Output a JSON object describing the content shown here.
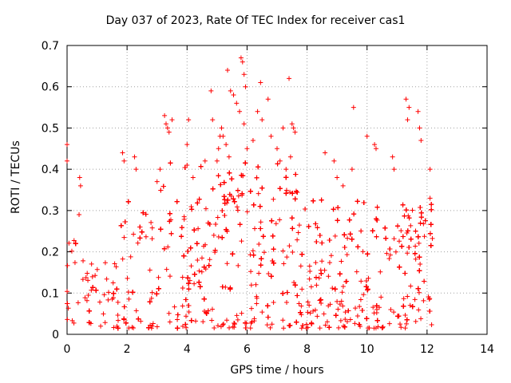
{
  "chart_data": {
    "type": "scatter",
    "title": "Day 037 of 2023, Rate Of TEC Index for receiver cas1",
    "xlabel": "GPS time / hours",
    "ylabel": "ROTI / TECUs",
    "xlim": [
      0,
      14
    ],
    "ylim": [
      0,
      0.7
    ],
    "xticks": [
      0,
      2,
      4,
      6,
      8,
      10,
      12,
      14
    ],
    "yticks": [
      0,
      0.1,
      0.2,
      0.3,
      0.4,
      0.5,
      0.6,
      0.7
    ],
    "xtick_labels": [
      "0",
      "2",
      "4",
      "6",
      "8",
      "10",
      "12",
      "14"
    ],
    "ytick_labels": [
      "0",
      "0.1",
      "0.2",
      "0.3",
      "0.4",
      "0.5",
      "0.6",
      "0.7"
    ],
    "grid": true,
    "marker": "+",
    "color": "#ff0000",
    "series": [
      {
        "points": [
          [
            0.0,
            0.46
          ],
          [
            0.0,
            0.42
          ],
          [
            0.45,
            0.36
          ],
          [
            0.42,
            0.38
          ],
          [
            0.4,
            0.29
          ],
          [
            1.85,
            0.44
          ],
          [
            1.9,
            0.42
          ],
          [
            2.25,
            0.43
          ],
          [
            2.3,
            0.4
          ],
          [
            3.25,
            0.53
          ],
          [
            3.3,
            0.51
          ],
          [
            3.35,
            0.5
          ],
          [
            3.4,
            0.49
          ],
          [
            3.5,
            0.52
          ],
          [
            3.1,
            0.4
          ],
          [
            3.0,
            0.37
          ],
          [
            4.05,
            0.52
          ],
          [
            4.0,
            0.46
          ],
          [
            4.0,
            0.41
          ],
          [
            4.2,
            0.38
          ],
          [
            4.8,
            0.59
          ],
          [
            4.85,
            0.52
          ],
          [
            4.6,
            0.42
          ],
          [
            5.0,
            0.42
          ],
          [
            5.05,
            0.45
          ],
          [
            5.1,
            0.48
          ],
          [
            5.15,
            0.5
          ],
          [
            5.35,
            0.64
          ],
          [
            5.45,
            0.59
          ],
          [
            5.55,
            0.58
          ],
          [
            5.65,
            0.56
          ],
          [
            5.75,
            0.54
          ],
          [
            5.8,
            0.67
          ],
          [
            5.85,
            0.66
          ],
          [
            5.9,
            0.63
          ],
          [
            5.95,
            0.6
          ],
          [
            5.2,
            0.48
          ],
          [
            5.3,
            0.46
          ],
          [
            5.4,
            0.43
          ],
          [
            5.9,
            0.51
          ],
          [
            6.0,
            0.45
          ],
          [
            6.2,
            0.47
          ],
          [
            6.35,
            0.54
          ],
          [
            6.45,
            0.61
          ],
          [
            6.5,
            0.52
          ],
          [
            6.7,
            0.57
          ],
          [
            6.8,
            0.48
          ],
          [
            7.0,
            0.45
          ],
          [
            7.2,
            0.5
          ],
          [
            7.4,
            0.62
          ],
          [
            7.5,
            0.51
          ],
          [
            7.55,
            0.5
          ],
          [
            7.6,
            0.49
          ],
          [
            7.1,
            0.42
          ],
          [
            7.3,
            0.4
          ],
          [
            7.45,
            0.43
          ],
          [
            8.6,
            0.44
          ],
          [
            8.9,
            0.42
          ],
          [
            9.0,
            0.38
          ],
          [
            9.2,
            0.36
          ],
          [
            9.5,
            0.4
          ],
          [
            9.55,
            0.55
          ],
          [
            10.0,
            0.48
          ],
          [
            10.3,
            0.45
          ],
          [
            10.25,
            0.46
          ],
          [
            10.85,
            0.43
          ],
          [
            10.9,
            0.4
          ],
          [
            11.3,
            0.57
          ],
          [
            11.4,
            0.55
          ],
          [
            11.35,
            0.52
          ],
          [
            11.7,
            0.54
          ],
          [
            11.75,
            0.5
          ],
          [
            11.8,
            0.47
          ],
          [
            12.1,
            0.4
          ],
          [
            12.1,
            0.33
          ]
        ]
      }
    ]
  }
}
